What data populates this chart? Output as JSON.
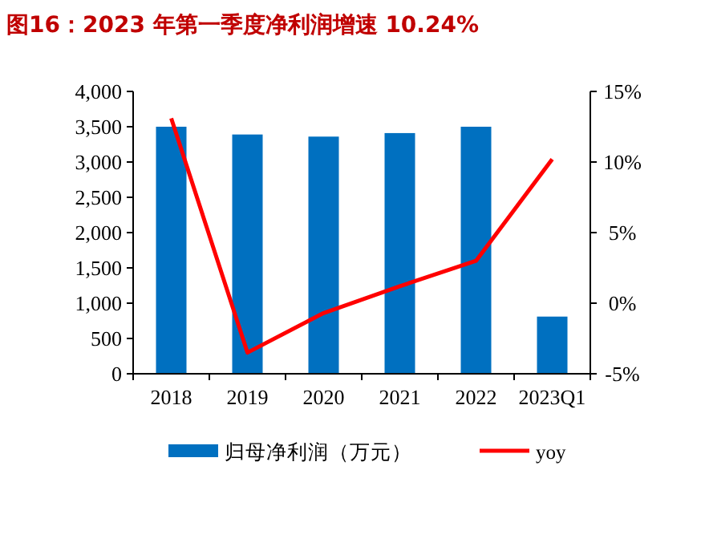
{
  "chart_data": {
    "type": "bar",
    "title": "图16：2023 年第一季度净利润增速 10.24%",
    "categories": [
      "2018",
      "2019",
      "2020",
      "2021",
      "2022",
      "2023Q1"
    ],
    "series": [
      {
        "name": "归母净利润（万元）",
        "color": "#0070c0",
        "values": [
          3500,
          3390,
          3360,
          3410,
          3500,
          810
        ]
      },
      {
        "name": "yoy",
        "type": "line",
        "axis": "y2",
        "color": "#ff0000",
        "values": [
          13.1,
          -3.5,
          -0.7,
          1.2,
          3.0,
          10.2
        ]
      }
    ],
    "ylim": [
      0,
      4000
    ],
    "yticks": [
      0,
      500,
      {
        "value": 1000,
        "label": "1,000"
      },
      {
        "value": 1500,
        "label": "1,500"
      },
      {
        "value": 2000,
        "label": "2,000"
      },
      {
        "value": 2500,
        "label": "2,500"
      },
      {
        "value": 3000,
        "label": "3,000"
      },
      {
        "value": 3500,
        "label": "3,500"
      },
      {
        "value": 4000,
        "label": "4,000"
      }
    ],
    "y2lim": [
      -5,
      15
    ],
    "y2ticks": [
      {
        "value": -5,
        "label": "-5%"
      },
      {
        "value": 0,
        "label": "0%"
      },
      {
        "value": 5,
        "label": "5%"
      },
      {
        "value": 10,
        "label": "10%"
      },
      {
        "value": 15,
        "label": "15%"
      }
    ],
    "grid": false,
    "legend": "bottom"
  }
}
